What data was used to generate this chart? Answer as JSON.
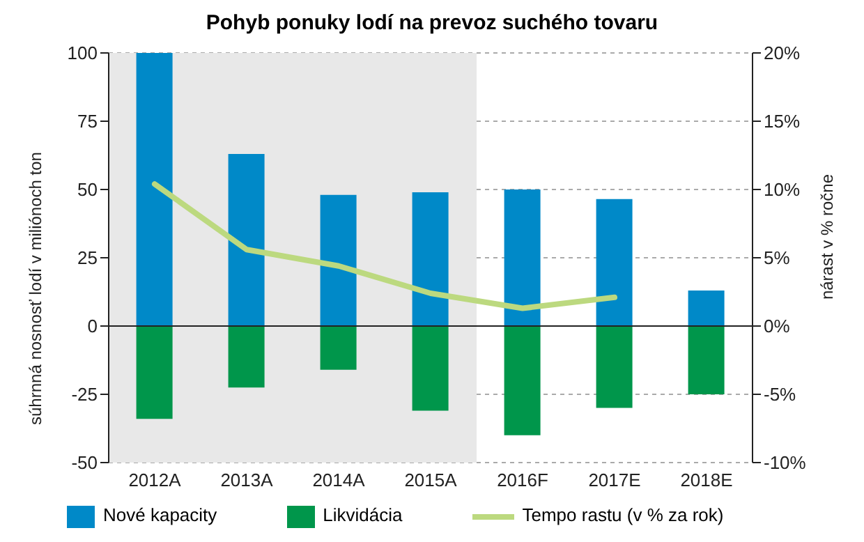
{
  "chart_data": {
    "type": "bar",
    "title": "Pohyb ponuky lodí na prevoz suchého tovaru",
    "ylabel": "súhrnná nosnosť lodí v miliónoch ton",
    "y2label": "nárast v % ročne",
    "categories": [
      "2012A",
      "2013A",
      "2014A",
      "2015A",
      "2016F",
      "2017E",
      "2018E"
    ],
    "stacked": true,
    "series": [
      {
        "name": "Nové kapacity",
        "color": "#0089c8",
        "values": [
          100,
          63,
          48,
          49,
          50,
          46.5,
          13
        ]
      },
      {
        "name": "Likvidácia",
        "color": "#00964b",
        "values": [
          -34,
          -22.5,
          -16,
          -31,
          -40,
          -30,
          -25
        ]
      },
      {
        "name": "Tempo rastu (v % za rok)",
        "type": "line",
        "axis": "y2",
        "color": "#bcd97f",
        "values": [
          10.4,
          5.6,
          4.4,
          2.4,
          1.3,
          2.1,
          null
        ]
      }
    ],
    "ylim": [
      -50,
      100
    ],
    "yticks": [
      -50,
      -25,
      0,
      25,
      50,
      75,
      100
    ],
    "y2lim": [
      -10,
      20
    ],
    "y2ticks": [
      {
        "value": -10,
        "label": "-10%"
      },
      {
        "value": -5,
        "label": "-5%"
      },
      {
        "value": 0,
        "label": "0%"
      },
      {
        "value": 5,
        "label": "5%"
      },
      {
        "value": 10,
        "label": "10%"
      },
      {
        "value": 15,
        "label": "15%"
      },
      {
        "value": 20,
        "label": "20%"
      }
    ],
    "bands": [
      {
        "axis": "x",
        "from": "2012A",
        "to": "2015A",
        "color": "#e8e8e8"
      }
    ],
    "grid": "y",
    "legend": "bottom",
    "marker": "none",
    "line_style": "solid"
  }
}
